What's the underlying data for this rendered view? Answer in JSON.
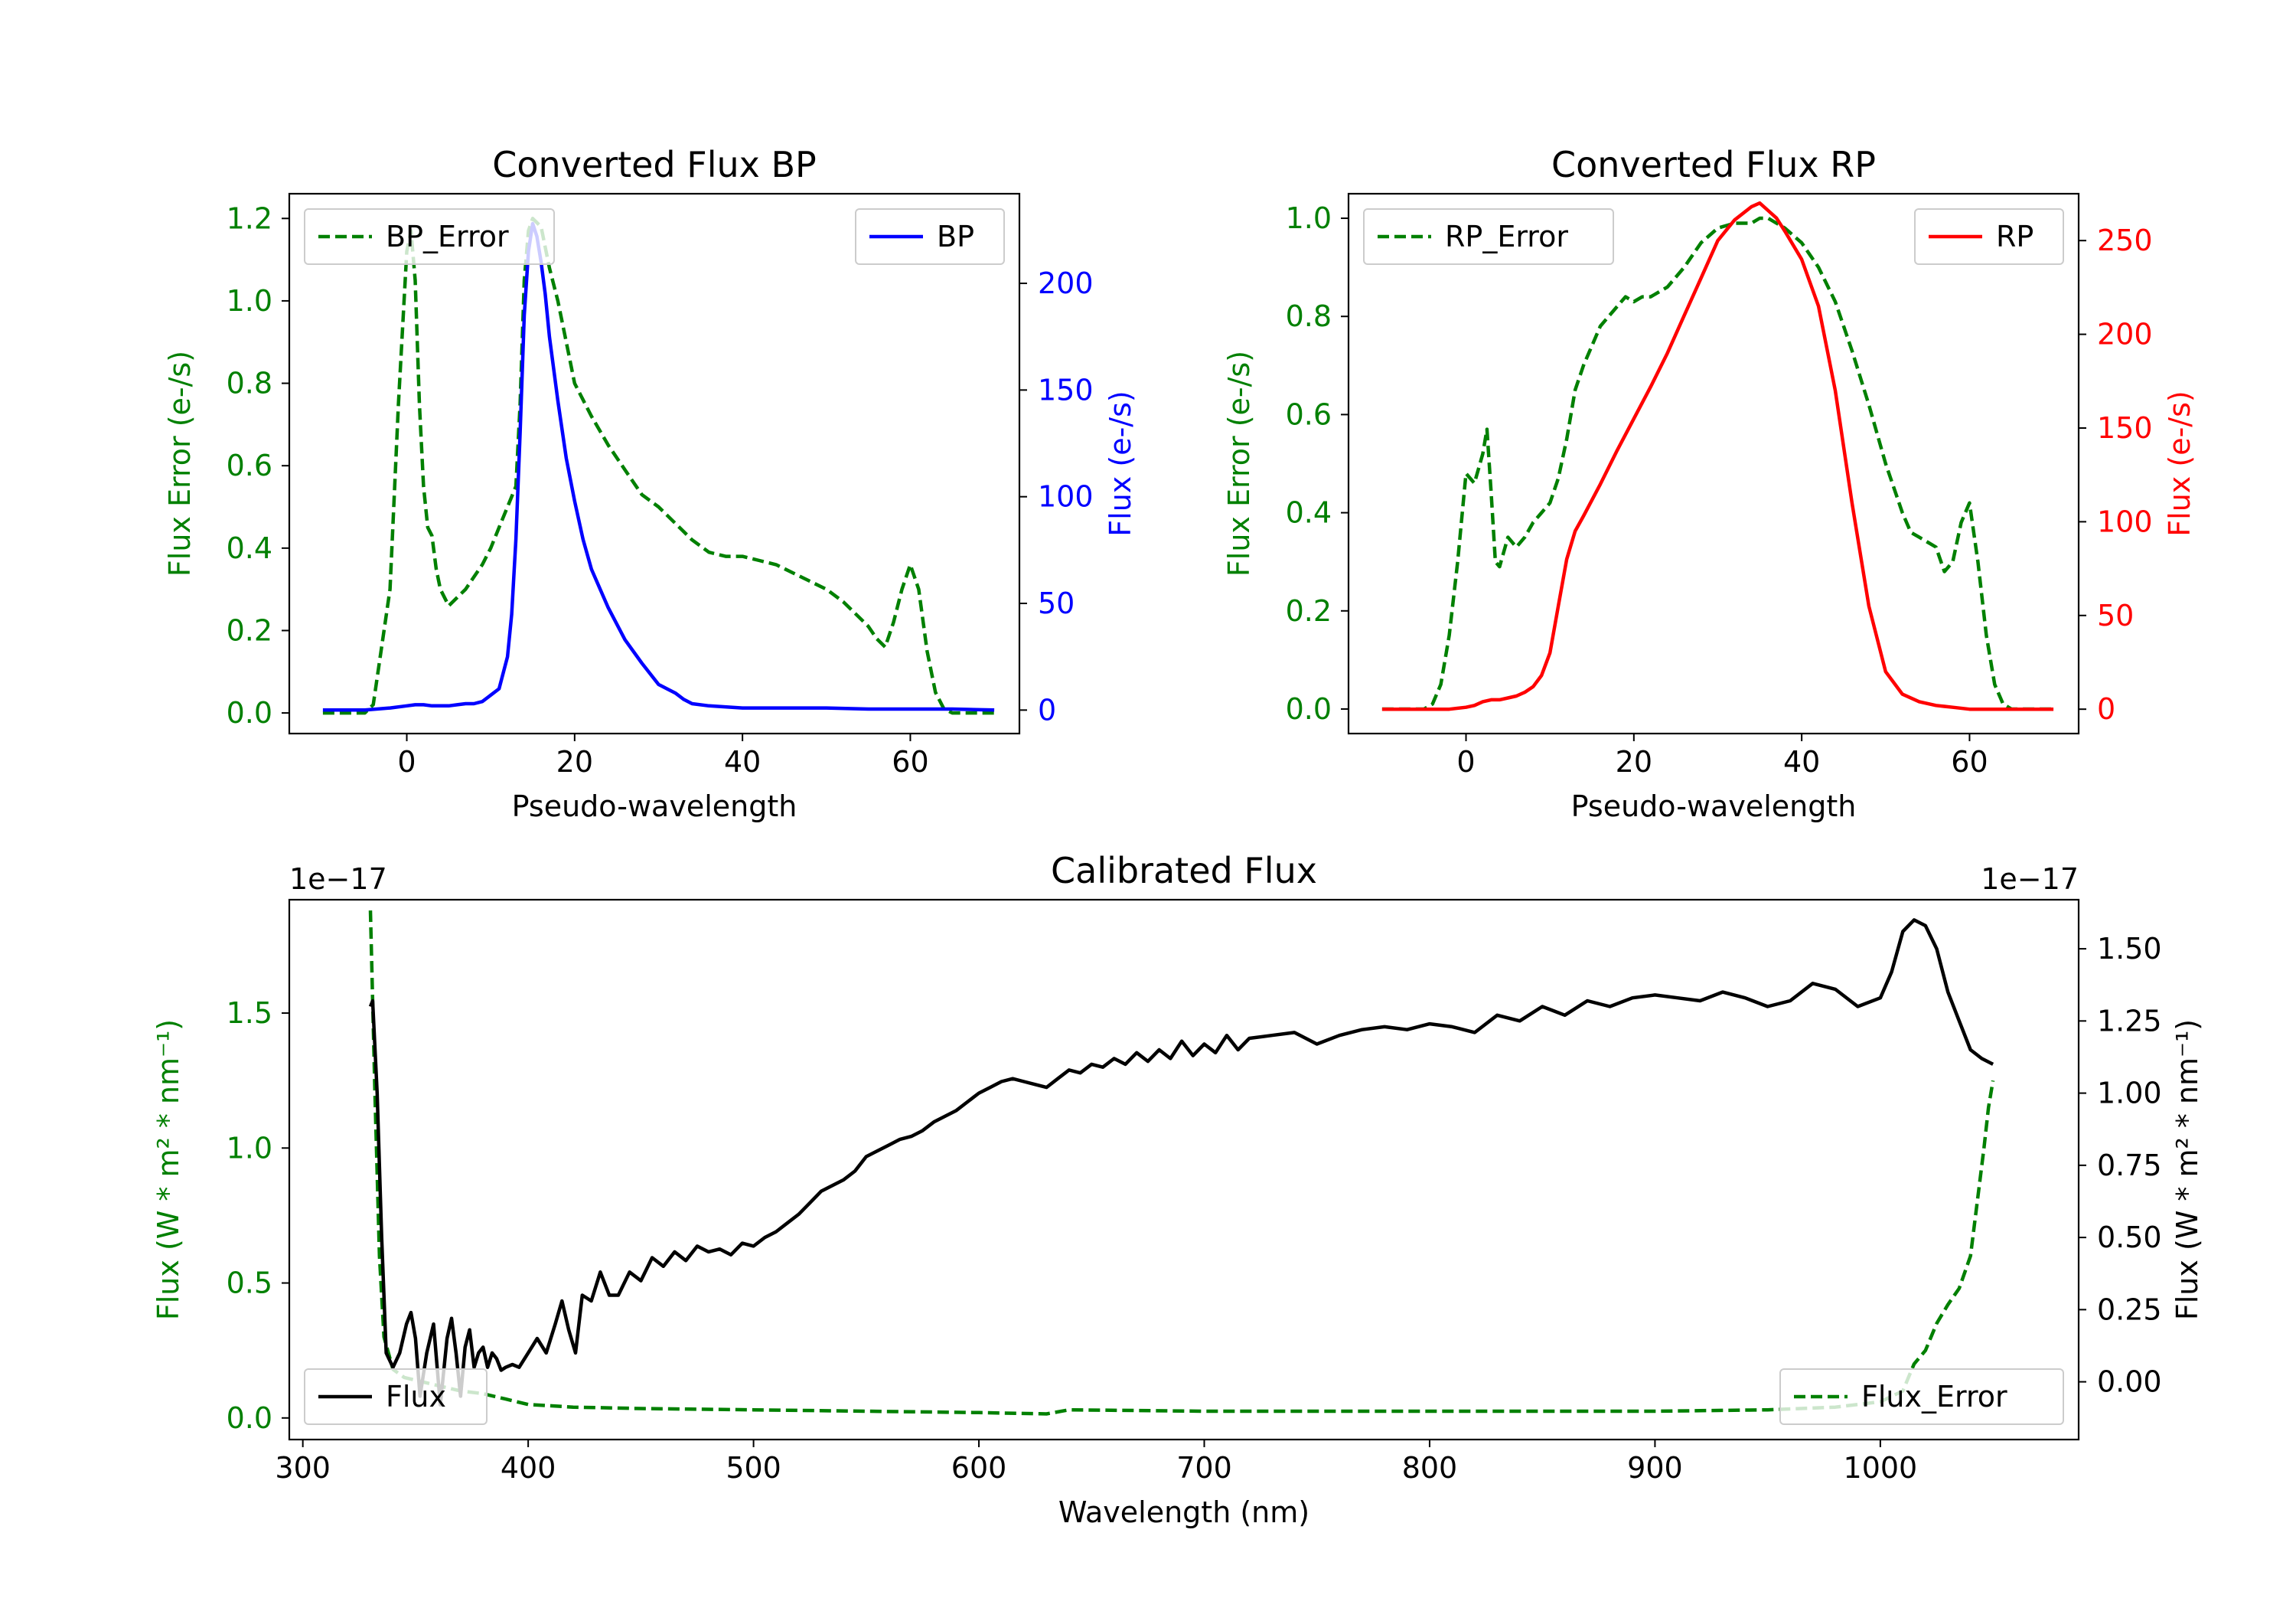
{
  "chart_data": [
    {
      "type": "line",
      "title": "Converted Flux BP",
      "xlabel": "Pseudo-wavelength",
      "ylabel_left": "Flux Error (e-/s)",
      "ylabel_right": "Flux (e-/s)",
      "xlim": [
        -14,
        73
      ],
      "ylim_left": [
        -0.05,
        1.26
      ],
      "ylim_right": [
        -11,
        242
      ],
      "xticks": [
        0,
        20,
        40,
        60
      ],
      "yticks_left": [
        0.0,
        0.2,
        0.4,
        0.6,
        0.8,
        1.0,
        1.2
      ],
      "yticks_right": [
        0,
        50,
        100,
        150,
        200
      ],
      "colors": {
        "left": "#008000",
        "right": "#0000ff"
      },
      "legend_left": "BP_Error",
      "legend_right": "BP",
      "series": [
        {
          "name": "BP_Error",
          "axis": "left",
          "style": "dashed",
          "color": "#008000",
          "x": [
            -10,
            -5,
            -4,
            -2,
            -1,
            0,
            0.5,
            1,
            1.5,
            2,
            2.5,
            3,
            3.5,
            4,
            5,
            6,
            7,
            8,
            9,
            10,
            11,
            12,
            13,
            13.5,
            14,
            14.5,
            15,
            16,
            17,
            18,
            19,
            20,
            22,
            24,
            26,
            28,
            30,
            32,
            34,
            36,
            38,
            40,
            42,
            44,
            46,
            48,
            50,
            52,
            54,
            55,
            56,
            57,
            58,
            59,
            60,
            61,
            62,
            63,
            64,
            65,
            70
          ],
          "y": [
            0.0,
            0.0,
            0.02,
            0.3,
            0.75,
            1.12,
            1.17,
            1.05,
            0.75,
            0.55,
            0.45,
            0.43,
            0.35,
            0.3,
            0.26,
            0.28,
            0.3,
            0.33,
            0.36,
            0.4,
            0.45,
            0.5,
            0.55,
            0.75,
            1.05,
            1.17,
            1.2,
            1.18,
            1.08,
            1.0,
            0.9,
            0.8,
            0.72,
            0.65,
            0.59,
            0.53,
            0.5,
            0.46,
            0.42,
            0.39,
            0.38,
            0.38,
            0.37,
            0.36,
            0.34,
            0.32,
            0.3,
            0.27,
            0.23,
            0.21,
            0.18,
            0.16,
            0.22,
            0.3,
            0.36,
            0.3,
            0.15,
            0.05,
            0.01,
            0.0,
            0.0
          ]
        },
        {
          "name": "BP",
          "axis": "right",
          "style": "solid",
          "color": "#0000ff",
          "x": [
            -10,
            -5,
            -2,
            0,
            1,
            2,
            3,
            4,
            5,
            6,
            7,
            8,
            9,
            10,
            11,
            12,
            12.5,
            13,
            13.5,
            14,
            14.5,
            15,
            15.5,
            16,
            16.5,
            17,
            18,
            19,
            20,
            21,
            22,
            24,
            26,
            28,
            30,
            31,
            32,
            33,
            34,
            36,
            40,
            45,
            50,
            55,
            60,
            65,
            70
          ],
          "y": [
            0,
            0,
            1,
            2,
            2.5,
            2.5,
            2,
            2,
            2,
            2.5,
            3,
            3,
            4,
            7,
            10,
            25,
            45,
            80,
            130,
            185,
            215,
            228,
            222,
            210,
            195,
            175,
            145,
            118,
            98,
            80,
            66,
            48,
            33,
            22,
            12,
            10,
            8,
            5,
            3,
            2,
            1,
            1,
            1,
            0.5,
            0.5,
            0.5,
            0
          ]
        }
      ]
    },
    {
      "type": "line",
      "title": "Converted Flux RP",
      "xlabel": "Pseudo-wavelength",
      "ylabel_left": "Flux Error (e-/s)",
      "ylabel_right": "Flux (e-/s)",
      "xlim": [
        -14,
        73
      ],
      "ylim_left": [
        -0.05,
        1.05
      ],
      "ylim_right": [
        -13,
        275
      ],
      "xticks": [
        0,
        20,
        40,
        60
      ],
      "yticks_left": [
        0.0,
        0.2,
        0.4,
        0.6,
        0.8,
        1.0
      ],
      "yticks_right": [
        0,
        50,
        100,
        150,
        200,
        250
      ],
      "colors": {
        "left": "#008000",
        "right": "#ff0000"
      },
      "legend_left": "RP_Error",
      "legend_right": "RP",
      "series": [
        {
          "name": "RP_Error",
          "axis": "left",
          "style": "dashed",
          "color": "#008000",
          "x": [
            -10,
            -5,
            -4,
            -3,
            -2,
            -1,
            0,
            1,
            2,
            2.5,
            3,
            3.5,
            4,
            5,
            6,
            7,
            8,
            9,
            10,
            11,
            12,
            13,
            14,
            15,
            16,
            17,
            18,
            19,
            20,
            21,
            22,
            24,
            26,
            28,
            30,
            32,
            34,
            35,
            36,
            37,
            38,
            40,
            42,
            44,
            46,
            48,
            50,
            52,
            53,
            54,
            55,
            56,
            57,
            58,
            59,
            60,
            61,
            62,
            63,
            64,
            65,
            70
          ],
          "y": [
            0.0,
            0.0,
            0.01,
            0.05,
            0.15,
            0.3,
            0.48,
            0.46,
            0.52,
            0.57,
            0.44,
            0.3,
            0.29,
            0.35,
            0.33,
            0.35,
            0.38,
            0.4,
            0.42,
            0.47,
            0.55,
            0.65,
            0.7,
            0.74,
            0.78,
            0.8,
            0.82,
            0.84,
            0.83,
            0.84,
            0.84,
            0.86,
            0.9,
            0.95,
            0.98,
            0.99,
            0.99,
            1.0,
            1.0,
            0.99,
            0.98,
            0.95,
            0.9,
            0.83,
            0.73,
            0.62,
            0.5,
            0.4,
            0.36,
            0.35,
            0.34,
            0.33,
            0.28,
            0.3,
            0.38,
            0.42,
            0.3,
            0.15,
            0.05,
            0.01,
            0.0,
            0.0
          ]
        },
        {
          "name": "RP",
          "axis": "right",
          "style": "solid",
          "color": "#ff0000",
          "x": [
            -10,
            -5,
            -2,
            0,
            1,
            2,
            3,
            4,
            5,
            6,
            7,
            8,
            9,
            10,
            11,
            12,
            13,
            14,
            16,
            18,
            20,
            22,
            24,
            26,
            28,
            30,
            32,
            34,
            35,
            36,
            37,
            38,
            40,
            42,
            44,
            46,
            48,
            50,
            52,
            54,
            56,
            58,
            60,
            62,
            65,
            70
          ],
          "y": [
            0,
            0,
            0,
            1,
            2,
            4,
            5,
            5,
            6,
            7,
            9,
            12,
            18,
            30,
            55,
            80,
            95,
            103,
            120,
            138,
            155,
            172,
            190,
            210,
            230,
            250,
            261,
            268,
            270,
            266,
            262,
            255,
            240,
            215,
            170,
            110,
            55,
            20,
            8,
            4,
            2,
            1,
            0,
            0,
            0,
            0
          ]
        }
      ]
    },
    {
      "type": "line",
      "title": "Calibrated Flux",
      "xlabel": "Wavelength (nm)",
      "ylabel_left": "Flux (W * m² * nm⁻¹)",
      "ylabel_right": "Flux (W * m² * nm⁻¹)",
      "offset_text_left": "1e−17",
      "offset_text_right": "1e−17",
      "xlim": [
        294,
        1088
      ],
      "ylim_left": [
        -0.08,
        1.92
      ],
      "ylim_right": [
        -0.2,
        1.67
      ],
      "xticks": [
        300,
        400,
        500,
        600,
        700,
        800,
        900,
        1000
      ],
      "yticks_left": [
        0.0,
        0.5,
        1.0,
        1.5
      ],
      "yticks_right": [
        0.0,
        0.25,
        0.5,
        0.75,
        1.0,
        1.25,
        1.5
      ],
      "yticks_left_labels": [
        "0.0",
        "0.5",
        "1.0",
        "1.5"
      ],
      "yticks_right_labels": [
        "0.00",
        "0.25",
        "0.50",
        "0.75",
        "1.00",
        "1.25",
        "1.50"
      ],
      "colors": {
        "left": "#008000",
        "right": "#000000"
      },
      "legend_left": "Flux",
      "legend_right": "Flux_Error",
      "series": [
        {
          "name": "Flux_Error",
          "axis": "left",
          "style": "dashed",
          "color": "#008000",
          "x": [
            330,
            332,
            334,
            336,
            340,
            345,
            350,
            360,
            370,
            380,
            390,
            400,
            420,
            450,
            500,
            550,
            600,
            630,
            640,
            700,
            750,
            800,
            850,
            900,
            950,
            980,
            1000,
            1010,
            1015,
            1020,
            1025,
            1030,
            1035,
            1040,
            1043,
            1046,
            1048,
            1050
          ],
          "y": [
            1.88,
            1.2,
            0.6,
            0.3,
            0.18,
            0.15,
            0.14,
            0.12,
            0.1,
            0.09,
            0.07,
            0.05,
            0.04,
            0.035,
            0.03,
            0.025,
            0.02,
            0.015,
            0.03,
            0.025,
            0.025,
            0.025,
            0.025,
            0.025,
            0.03,
            0.04,
            0.06,
            0.1,
            0.2,
            0.25,
            0.35,
            0.42,
            0.48,
            0.6,
            0.8,
            1.0,
            1.15,
            1.25
          ]
        },
        {
          "name": "Flux",
          "axis": "right",
          "style": "solid",
          "color": "#000000",
          "x": [
            330,
            331,
            333,
            335,
            337,
            340,
            343,
            346,
            348,
            350,
            352,
            355,
            358,
            361,
            364,
            366,
            368,
            370,
            372,
            374,
            376,
            378,
            380,
            382,
            384,
            386,
            388,
            390,
            393,
            396,
            400,
            404,
            408,
            412,
            415,
            418,
            421,
            424,
            428,
            432,
            436,
            440,
            445,
            450,
            455,
            460,
            465,
            470,
            475,
            480,
            485,
            490,
            495,
            500,
            505,
            510,
            515,
            520,
            525,
            530,
            535,
            540,
            545,
            550,
            555,
            560,
            565,
            570,
            575,
            580,
            585,
            590,
            595,
            600,
            605,
            610,
            615,
            620,
            625,
            630,
            635,
            640,
            645,
            650,
            655,
            660,
            665,
            670,
            675,
            680,
            685,
            690,
            695,
            700,
            705,
            710,
            715,
            720,
            730,
            740,
            750,
            760,
            770,
            780,
            790,
            800,
            810,
            820,
            830,
            840,
            850,
            860,
            870,
            880,
            890,
            900,
            910,
            920,
            930,
            940,
            950,
            960,
            970,
            980,
            990,
            1000,
            1005,
            1010,
            1015,
            1020,
            1025,
            1030,
            1035,
            1040,
            1045,
            1050
          ],
          "y": [
            1.3,
            1.32,
            1.0,
            0.5,
            0.1,
            0.05,
            0.1,
            0.2,
            0.24,
            0.15,
            -0.05,
            0.1,
            0.2,
            -0.08,
            0.15,
            0.22,
            0.1,
            -0.05,
            0.12,
            0.18,
            0.05,
            0.1,
            0.12,
            0.05,
            0.1,
            0.08,
            0.04,
            0.05,
            0.06,
            0.05,
            0.1,
            0.15,
            0.1,
            0.2,
            0.28,
            0.18,
            0.1,
            0.3,
            0.28,
            0.38,
            0.3,
            0.3,
            0.38,
            0.35,
            0.43,
            0.4,
            0.45,
            0.42,
            0.47,
            0.45,
            0.46,
            0.44,
            0.48,
            0.47,
            0.5,
            0.52,
            0.55,
            0.58,
            0.62,
            0.66,
            0.68,
            0.7,
            0.73,
            0.78,
            0.8,
            0.82,
            0.84,
            0.85,
            0.87,
            0.9,
            0.92,
            0.94,
            0.97,
            1.0,
            1.02,
            1.04,
            1.05,
            1.04,
            1.03,
            1.02,
            1.05,
            1.08,
            1.07,
            1.1,
            1.09,
            1.12,
            1.1,
            1.14,
            1.11,
            1.15,
            1.12,
            1.18,
            1.13,
            1.17,
            1.14,
            1.2,
            1.15,
            1.19,
            1.2,
            1.21,
            1.17,
            1.2,
            1.22,
            1.23,
            1.22,
            1.24,
            1.23,
            1.21,
            1.27,
            1.25,
            1.3,
            1.27,
            1.32,
            1.3,
            1.33,
            1.34,
            1.33,
            1.32,
            1.35,
            1.33,
            1.3,
            1.32,
            1.38,
            1.36,
            1.3,
            1.33,
            1.42,
            1.56,
            1.6,
            1.58,
            1.5,
            1.35,
            1.25,
            1.15,
            1.12,
            1.1
          ]
        }
      ]
    }
  ]
}
